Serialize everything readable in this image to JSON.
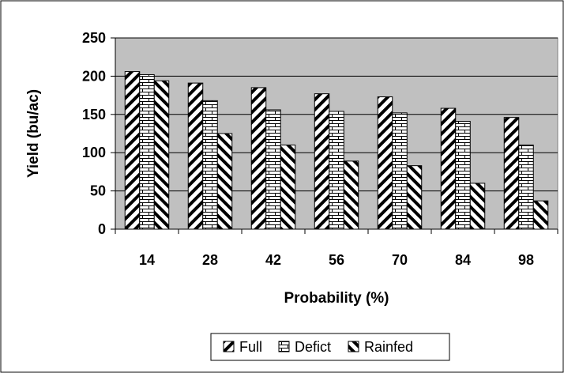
{
  "chart_data": {
    "type": "bar",
    "title": "",
    "xlabel": "Probability (%)",
    "ylabel": "Yield (bu/ac)",
    "categories": [
      "14",
      "28",
      "42",
      "56",
      "70",
      "84",
      "98"
    ],
    "ylim": [
      0,
      250
    ],
    "yticks": [
      "0",
      "50",
      "100",
      "150",
      "200",
      "250"
    ],
    "grid": true,
    "legend_position": "bottom",
    "plot_background": "#c0c0c0",
    "series": [
      {
        "name": "Full",
        "pattern": "diagonal-forward",
        "values": [
          206,
          191,
          185,
          177,
          173,
          158,
          146
        ]
      },
      {
        "name": "Deficit",
        "label": "Defict",
        "pattern": "brick",
        "values": [
          202,
          168,
          156,
          154,
          152,
          141,
          110
        ]
      },
      {
        "name": "Rainfed",
        "pattern": "diagonal-backward",
        "values": [
          194,
          125,
          110,
          89,
          83,
          60,
          37
        ]
      }
    ]
  }
}
